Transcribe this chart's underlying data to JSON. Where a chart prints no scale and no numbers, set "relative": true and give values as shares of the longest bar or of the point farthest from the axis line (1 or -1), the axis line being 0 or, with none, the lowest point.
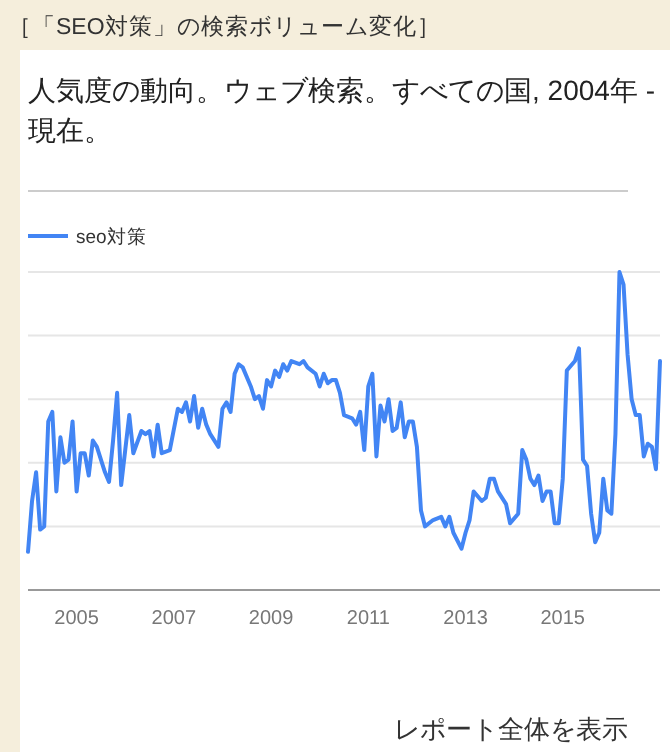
{
  "chart_data": {
    "type": "line",
    "title": "［「SEO対策」の検索ボリューム変化］",
    "subtitle": "人気度の動向。ウェブ検索。すべての国, 2004年 - 現在。",
    "relative": true,
    "grid": "y",
    "legend": "top left",
    "annotations": [
      "レポート全体を表示"
    ],
    "xlim": [
      "2004-01",
      "2017-01"
    ],
    "xticks": [
      "2005",
      "2007",
      "2009",
      "2011",
      "2013",
      "2015"
    ],
    "series": [
      {
        "name": "seo対策",
        "color": "#4285f4",
        "x": [
          "2004-01",
          "2004-02",
          "2004-03",
          "2004-04",
          "2004-05",
          "2004-06",
          "2004-07",
          "2004-08",
          "2004-09",
          "2004-10",
          "2004-11",
          "2004-12",
          "2005-01",
          "2005-02",
          "2005-03",
          "2005-04",
          "2005-05",
          "2005-06",
          "2005-08",
          "2005-09",
          "2005-10",
          "2005-11",
          "2005-12",
          "2006-01",
          "2006-02",
          "2006-03",
          "2006-05",
          "2006-06",
          "2006-07",
          "2006-08",
          "2006-09",
          "2006-10",
          "2006-12",
          "2007-02",
          "2007-03",
          "2007-04",
          "2007-05",
          "2007-06",
          "2007-07",
          "2007-08",
          "2007-09",
          "2007-10",
          "2007-12",
          "2008-01",
          "2008-02",
          "2008-03",
          "2008-04",
          "2008-05",
          "2008-06",
          "2008-08",
          "2008-09",
          "2008-10",
          "2008-11",
          "2008-12",
          "2009-01",
          "2009-02",
          "2009-03",
          "2009-04",
          "2009-05",
          "2009-06",
          "2009-08",
          "2009-09",
          "2009-10",
          "2009-12",
          "2010-01",
          "2010-02",
          "2010-03",
          "2010-04",
          "2010-05",
          "2010-06",
          "2010-07",
          "2010-09",
          "2010-10",
          "2010-11",
          "2010-12",
          "2011-01",
          "2011-02",
          "2011-03",
          "2011-04",
          "2011-05",
          "2011-06",
          "2011-07",
          "2011-08",
          "2011-09",
          "2011-10",
          "2011-11",
          "2011-12",
          "2012-01",
          "2012-02",
          "2012-03",
          "2012-05",
          "2012-07",
          "2012-08",
          "2012-09",
          "2012-10",
          "2012-12",
          "2013-01",
          "2013-02",
          "2013-03",
          "2013-05",
          "2013-06",
          "2013-07",
          "2013-08",
          "2013-09",
          "2013-11",
          "2013-12",
          "2014-02",
          "2014-03",
          "2014-04",
          "2014-05",
          "2014-06",
          "2014-07",
          "2014-08",
          "2014-09",
          "2014-10",
          "2014-11",
          "2014-12",
          "2015-01",
          "2015-02",
          "2015-04",
          "2015-05",
          "2015-06",
          "2015-07",
          "2015-08",
          "2015-09",
          "2015-10",
          "2015-11",
          "2015-12",
          "2016-01",
          "2016-02",
          "2016-03",
          "2016-04",
          "2016-05",
          "2016-06",
          "2016-07",
          "2016-08",
          "2016-09",
          "2016-10",
          "2016-11",
          "2016-12",
          "2017-01"
        ],
        "values": [
          0.12,
          0.28,
          0.37,
          0.19,
          0.2,
          0.53,
          0.56,
          0.31,
          0.48,
          0.4,
          0.41,
          0.53,
          0.31,
          0.43,
          0.43,
          0.36,
          0.47,
          0.45,
          0.37,
          0.34,
          0.47,
          0.62,
          0.33,
          0.44,
          0.55,
          0.43,
          0.5,
          0.49,
          0.5,
          0.42,
          0.52,
          0.43,
          0.44,
          0.57,
          0.56,
          0.59,
          0.53,
          0.61,
          0.51,
          0.57,
          0.52,
          0.49,
          0.45,
          0.57,
          0.59,
          0.56,
          0.68,
          0.71,
          0.7,
          0.64,
          0.6,
          0.61,
          0.57,
          0.66,
          0.64,
          0.69,
          0.67,
          0.71,
          0.69,
          0.72,
          0.71,
          0.72,
          0.7,
          0.68,
          0.64,
          0.68,
          0.65,
          0.66,
          0.66,
          0.62,
          0.55,
          0.54,
          0.52,
          0.56,
          0.44,
          0.64,
          0.68,
          0.42,
          0.58,
          0.53,
          0.6,
          0.5,
          0.51,
          0.59,
          0.48,
          0.53,
          0.53,
          0.45,
          0.25,
          0.2,
          0.22,
          0.23,
          0.2,
          0.23,
          0.18,
          0.13,
          0.18,
          0.22,
          0.31,
          0.28,
          0.29,
          0.35,
          0.35,
          0.31,
          0.27,
          0.21,
          0.24,
          0.44,
          0.41,
          0.35,
          0.33,
          0.36,
          0.28,
          0.31,
          0.31,
          0.21,
          0.21,
          0.35,
          0.69,
          0.72,
          0.76,
          0.41,
          0.39,
          0.24,
          0.15,
          0.18,
          0.35,
          0.25,
          0.24,
          0.49,
          1.0,
          0.96,
          0.74,
          0.6,
          0.55,
          0.55,
          0.42,
          0.46,
          0.45,
          0.38,
          0.72
        ]
      }
    ]
  }
}
